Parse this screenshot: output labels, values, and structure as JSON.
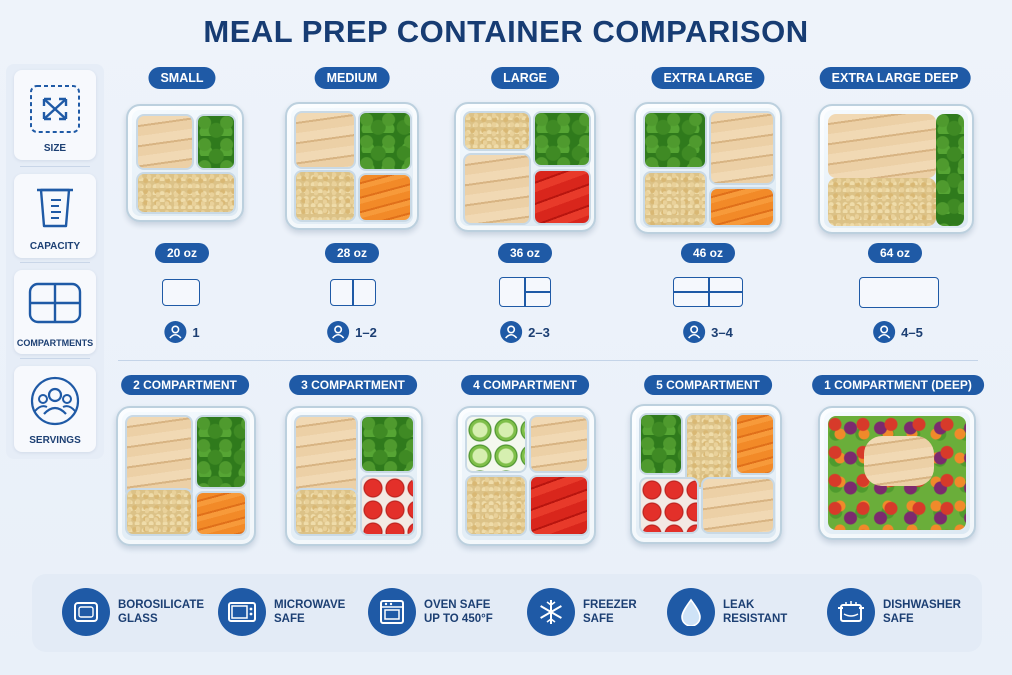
{
  "title": "MEAL PREP CONTAINER COMPARISON",
  "sidebar": [
    {
      "label": "SIZE",
      "icon": "resize-arrows-icon"
    },
    {
      "label": "CAPACITY",
      "icon": "measuring-cup-icon"
    },
    {
      "label": "COMPARTMENTS",
      "icon": "compartments-grid-icon"
    },
    {
      "label": "SERVINGS",
      "icon": "people-group-icon"
    }
  ],
  "sizes": [
    {
      "name": "SMALL",
      "capacity": "20 oz",
      "servings": "1"
    },
    {
      "name": "MEDIUM",
      "capacity": "28 oz",
      "servings": "1–2"
    },
    {
      "name": "LARGE",
      "capacity": "36 oz",
      "servings": "2–3"
    },
    {
      "name": "EXTRA LARGE",
      "capacity": "46 oz",
      "servings": "3–4"
    },
    {
      "name": "EXTRA LARGE DEEP",
      "capacity": "64 oz",
      "servings": "4–5"
    }
  ],
  "compartment_types": [
    {
      "name": "2 COMPARTMENT"
    },
    {
      "name": "3 COMPARTMENT"
    },
    {
      "name": "4 COMPARTMENT"
    },
    {
      "name": "5 COMPARTMENT"
    },
    {
      "name": "1 COMPARTMENT (DEEP)"
    }
  ],
  "features": [
    {
      "line1": "BOROSILICATE",
      "line2": "GLASS",
      "icon": "glass-container-icon"
    },
    {
      "line1": "MICROWAVE",
      "line2": "SAFE",
      "icon": "microwave-icon"
    },
    {
      "line1": "OVEN SAFE",
      "line2": "UP TO 450°F",
      "icon": "oven-icon"
    },
    {
      "line1": "FREEZER",
      "line2": "SAFE",
      "icon": "snowflake-icon"
    },
    {
      "line1": "LEAK",
      "line2": "RESISTANT",
      "icon": "water-drop-icon"
    },
    {
      "line1": "DISHWASHER",
      "line2": "SAFE",
      "icon": "dishwasher-icon"
    }
  ],
  "colors": {
    "accent": "#1f5aa6",
    "title": "#173c73",
    "background": "#eef3fa"
  }
}
